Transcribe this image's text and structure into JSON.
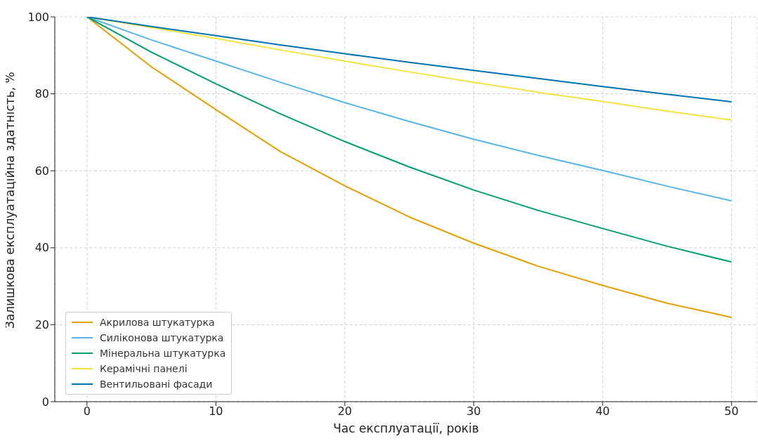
{
  "chart_data": {
    "type": "line",
    "xlabel": "Час експлуатації, років",
    "ylabel": "Залишкова експлуатаційна здатність, %",
    "x": [
      0,
      5,
      10,
      15,
      20,
      25,
      30,
      35,
      40,
      45,
      50
    ],
    "series": [
      {
        "name": "Акрилова штукатурка",
        "color": "#e69f00",
        "values": [
          100,
          87,
          75.9,
          65,
          56.1,
          48,
          41.2,
          35.2,
          30.2,
          25.6,
          21.9
        ]
      },
      {
        "name": "Силіконова штукатурка",
        "color": "#56b4e9",
        "values": [
          100,
          94,
          88.5,
          83,
          77.7,
          72.8,
          68.2,
          64,
          60.1,
          56,
          52.2
        ]
      },
      {
        "name": "Мінеральна штукатурка",
        "color": "#009e73",
        "values": [
          100,
          90.8,
          82.6,
          74.8,
          67.6,
          61,
          55,
          49.7,
          45,
          40.4,
          36.3
        ]
      },
      {
        "name": "Керамічні панелі",
        "color": "#f0e442",
        "values": [
          100,
          97.2,
          94.4,
          91.4,
          88.5,
          85.7,
          83,
          80.4,
          78,
          75.5,
          73.2
        ]
      },
      {
        "name": "Вентильовані фасади",
        "color": "#0072b2",
        "values": [
          100,
          97.5,
          95.1,
          92.7,
          90.4,
          88.2,
          86.1,
          84,
          81.9,
          79.9,
          77.9
        ]
      }
    ],
    "xlim": [
      -2.5,
      52
    ],
    "ylim": [
      0,
      100
    ],
    "xticks": [
      0,
      10,
      20,
      30,
      40,
      50
    ],
    "yticks": [
      0,
      20,
      40,
      60,
      80,
      100
    ],
    "grid": true,
    "legend": "bottom left",
    "marker": "none",
    "line_style": "solid"
  }
}
